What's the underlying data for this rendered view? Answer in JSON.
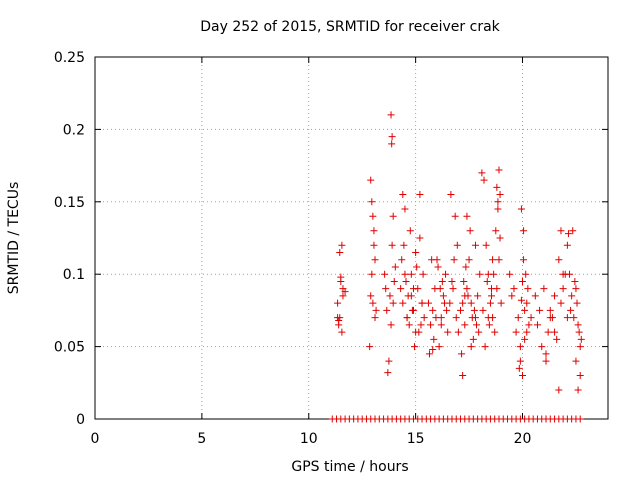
{
  "chart_data": {
    "type": "scatter",
    "title": "Day 252 of 2015, SRMTID for receiver crak",
    "xlabel": "GPS time / hours",
    "ylabel": "SRMTID / TECUs",
    "xlim": [
      0,
      24
    ],
    "ylim": [
      0,
      0.25
    ],
    "xticks": [
      0,
      5,
      10,
      15,
      20
    ],
    "xtick_labels": [
      "0",
      "5",
      "10",
      "15",
      "20"
    ],
    "yticks": [
      0,
      0.05,
      0.1,
      0.15,
      0.2,
      0.25
    ],
    "ytick_labels": [
      "0",
      "0.05",
      "0.1",
      "0.15",
      "0.2",
      "0.25"
    ],
    "grid": true,
    "legend": "none",
    "marker": "plus",
    "color": "#e00000",
    "series": [
      {
        "x": [
          11.35,
          11.4,
          11.45,
          11.5,
          11.55,
          11.6,
          11.35,
          11.4,
          11.5,
          11.6,
          11.7,
          11.45,
          11.55,
          12.9,
          12.95,
          13.0,
          13.05,
          13.1,
          13.15,
          12.85,
          12.95,
          13.05,
          13.0,
          12.9,
          13.1,
          13.6,
          13.7,
          13.75,
          13.8,
          13.9,
          14.0,
          13.55,
          13.65,
          13.85,
          13.95,
          13.85,
          13.9,
          13.88,
          13.95,
          14.05,
          14.3,
          14.4,
          14.5,
          14.6,
          14.7,
          14.8,
          14.9,
          15.0,
          15.1,
          15.2,
          15.3,
          15.4,
          14.35,
          14.55,
          14.75,
          14.95,
          15.15,
          15.35,
          14.45,
          14.65,
          14.85,
          15.05,
          15.25,
          14.5,
          14.9,
          15.3,
          14.4,
          14.8,
          15.2,
          14.6,
          15.0,
          15.6,
          15.7,
          15.8,
          15.9,
          16.0,
          16.1,
          16.2,
          16.3,
          16.4,
          16.5,
          15.65,
          15.85,
          16.05,
          16.25,
          16.45,
          15.75,
          15.95,
          16.15,
          16.35,
          15.8,
          16.2,
          16.6,
          16.7,
          16.8,
          16.9,
          17.0,
          16.65,
          16.85,
          16.95,
          16.75,
          17.1,
          17.2,
          17.3,
          17.4,
          17.5,
          17.6,
          17.7,
          17.8,
          17.9,
          18.0,
          17.15,
          17.35,
          17.55,
          17.75,
          17.95,
          17.25,
          17.45,
          17.65,
          17.85,
          17.4,
          17.8,
          17.6,
          17.3,
          17.2,
          18.1,
          18.2,
          18.3,
          18.4,
          18.5,
          18.6,
          18.7,
          18.8,
          18.9,
          19.0,
          18.15,
          18.35,
          18.55,
          18.75,
          18.95,
          18.25,
          18.45,
          18.65,
          18.85,
          18.55,
          18.6,
          18.4,
          18.8,
          18.9,
          18.85,
          18.95,
          19.4,
          19.6,
          19.8,
          19.9,
          20.0,
          20.1,
          20.2,
          20.3,
          20.4,
          19.5,
          19.7,
          19.95,
          20.05,
          20.15,
          20.25,
          19.85,
          19.9,
          20.0,
          20.1,
          20.2,
          20.05,
          19.95,
          20.6,
          20.8,
          21.0,
          21.2,
          21.4,
          21.6,
          21.8,
          22.0,
          20.7,
          20.9,
          21.1,
          21.3,
          21.5,
          21.7,
          21.9,
          21.5,
          21.7,
          21.9,
          22.1,
          21.8,
          21.3,
          21.1,
          22.1,
          22.2,
          22.3,
          22.4,
          22.5,
          22.6,
          22.7,
          22.15,
          22.35,
          22.55,
          22.65,
          22.75,
          22.5,
          22.6,
          22.7,
          22.25,
          22.45
        ],
        "y": [
          0.08,
          0.065,
          0.07,
          0.095,
          0.12,
          0.085,
          0.07,
          0.068,
          0.098,
          0.09,
          0.088,
          0.115,
          0.06,
          0.165,
          0.15,
          0.08,
          0.12,
          0.07,
          0.075,
          0.05,
          0.1,
          0.13,
          0.14,
          0.085,
          0.11,
          0.09,
          0.032,
          0.04,
          0.085,
          0.12,
          0.095,
          0.1,
          0.075,
          0.065,
          0.08,
          0.21,
          0.195,
          0.19,
          0.14,
          0.105,
          0.09,
          0.08,
          0.1,
          0.07,
          0.065,
          0.085,
          0.075,
          0.115,
          0.09,
          0.155,
          0.08,
          0.07,
          0.11,
          0.095,
          0.13,
          0.05,
          0.06,
          0.1,
          0.12,
          0.085,
          0.075,
          0.105,
          0.065,
          0.145,
          0.09,
          0.08,
          0.155,
          0.1,
          0.125,
          0.07,
          0.06,
          0.08,
          0.065,
          0.075,
          0.09,
          0.11,
          0.05,
          0.07,
          0.085,
          0.1,
          0.06,
          0.045,
          0.055,
          0.105,
          0.095,
          0.075,
          0.11,
          0.07,
          0.09,
          0.08,
          0.048,
          0.065,
          0.08,
          0.095,
          0.11,
          0.07,
          0.06,
          0.155,
          0.14,
          0.12,
          0.09,
          0.075,
          0.03,
          0.065,
          0.09,
          0.11,
          0.08,
          0.055,
          0.07,
          0.085,
          0.1,
          0.045,
          0.105,
          0.13,
          0.075,
          0.06,
          0.095,
          0.085,
          0.07,
          0.065,
          0.14,
          0.12,
          0.05,
          0.085,
          0.08,
          0.17,
          0.165,
          0.12,
          0.1,
          0.08,
          0.07,
          0.06,
          0.09,
          0.11,
          0.08,
          0.075,
          0.095,
          0.085,
          0.13,
          0.125,
          0.05,
          0.065,
          0.1,
          0.145,
          0.09,
          0.11,
          0.07,
          0.16,
          0.172,
          0.15,
          0.155,
          0.1,
          0.09,
          0.07,
          0.04,
          0.03,
          0.055,
          0.08,
          0.065,
          0.07,
          0.085,
          0.06,
          0.145,
          0.13,
          0.1,
          0.09,
          0.035,
          0.05,
          0.095,
          0.075,
          0.06,
          0.11,
          0.082,
          0.085,
          0.075,
          0.09,
          0.06,
          0.07,
          0.055,
          0.08,
          0.1,
          0.065,
          0.05,
          0.045,
          0.07,
          0.085,
          0.02,
          0.09,
          0.06,
          0.11,
          0.1,
          0.07,
          0.13,
          0.075,
          0.04,
          0.12,
          0.1,
          0.085,
          0.07,
          0.09,
          0.065,
          0.05,
          0.128,
          0.13,
          0.08,
          0.06,
          0.055,
          0.04,
          0.02,
          0.03,
          0.075,
          0.095
        ]
      },
      {
        "name": "",
        "x": [
          11.1,
          11.3,
          11.5,
          11.7,
          11.9,
          12.1,
          12.3,
          12.5,
          12.7,
          12.9,
          13.1,
          13.3,
          13.5,
          13.7,
          13.9,
          14.1,
          14.3,
          14.5,
          14.7,
          14.9,
          15.1,
          15.3,
          15.5,
          15.7,
          15.9,
          16.1,
          16.3,
          16.5,
          16.7,
          16.9,
          17.1,
          17.3,
          17.5,
          17.7,
          17.9,
          18.1,
          18.3,
          18.5,
          18.7,
          18.9,
          19.1,
          19.3,
          19.5,
          19.7,
          19.9,
          20.1,
          20.3,
          20.5,
          20.7,
          20.9,
          21.1,
          21.3,
          21.5,
          21.7,
          21.9,
          22.1,
          22.3,
          22.5,
          22.7
        ],
        "y": [
          0,
          0,
          0,
          0,
          0,
          0,
          0,
          0,
          0,
          0,
          0,
          0,
          0,
          0,
          0,
          0,
          0,
          0,
          0,
          0,
          0,
          0,
          0,
          0,
          0,
          0,
          0,
          0,
          0,
          0,
          0,
          0,
          0,
          0,
          0,
          0,
          0,
          0,
          0,
          0,
          0,
          0,
          0,
          0,
          0,
          0,
          0,
          0,
          0,
          0,
          0,
          0,
          0,
          0,
          0,
          0,
          0,
          0,
          0
        ]
      }
    ]
  }
}
